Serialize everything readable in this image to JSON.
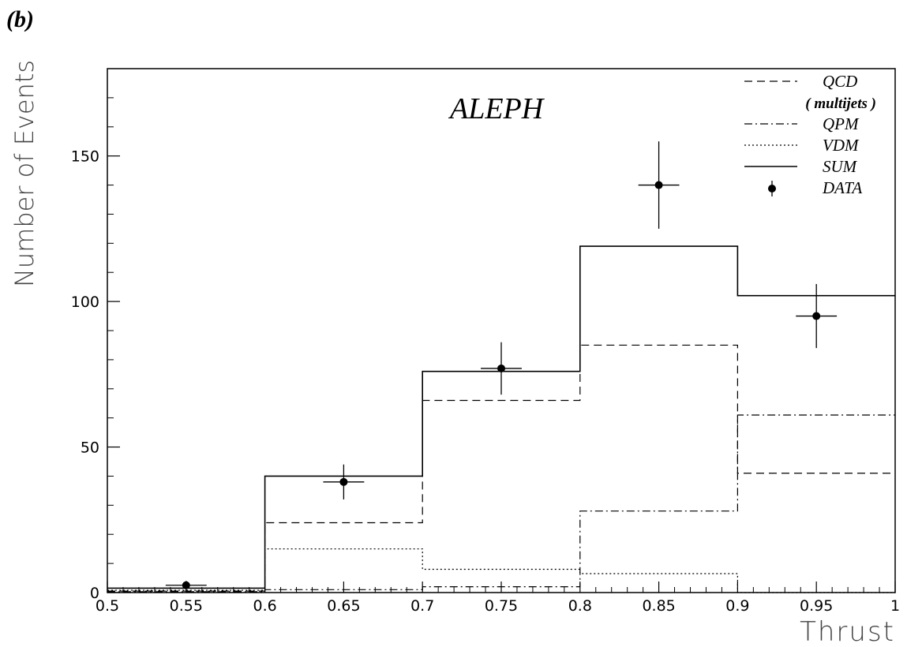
{
  "panel_label": "(b)",
  "chart_data": {
    "type": "histogram",
    "title": "ALEPH",
    "xlabel": "Thrust",
    "ylabel": "Number of Events",
    "xlim": [
      0.5,
      1.0
    ],
    "ylim": [
      0,
      180
    ],
    "x_ticks": [
      "0.5",
      "0.55",
      "0.6",
      "0.65",
      "0.7",
      "0.75",
      "0.8",
      "0.85",
      "0.9",
      "0.95",
      "1"
    ],
    "y_ticks": [
      "0",
      "50",
      "100",
      "150"
    ],
    "bin_edges": [
      0.5,
      0.6,
      0.7,
      0.8,
      0.9,
      1.0
    ],
    "series": [
      {
        "name": "QCD",
        "style": "dashed",
        "values": [
          0.5,
          24,
          66,
          85,
          41
        ]
      },
      {
        "name": "QPM",
        "style": "dashdot",
        "values": [
          0.3,
          1,
          2,
          28,
          61
        ]
      },
      {
        "name": "VDM",
        "style": "dotted",
        "values": [
          0.8,
          15,
          8,
          6.5,
          0
        ]
      },
      {
        "name": "SUM",
        "style": "solid",
        "values": [
          1.5,
          40,
          76,
          119,
          102
        ]
      }
    ],
    "data_points": {
      "name": "DATA",
      "x": [
        0.55,
        0.65,
        0.75,
        0.85,
        0.95
      ],
      "y": [
        2.5,
        38,
        77,
        140,
        95
      ],
      "y_err": [
        1.5,
        6,
        9,
        15,
        11
      ],
      "x_err": [
        0.01,
        0.01,
        0.01,
        0.01,
        0.01
      ]
    },
    "legend": {
      "placement": "top-right",
      "entries": [
        {
          "label": "QCD",
          "style": "dashed"
        },
        {
          "label": "( multijets )",
          "style": "none"
        },
        {
          "label": "QPM",
          "style": "dashdot"
        },
        {
          "label": "VDM",
          "style": "dotted"
        },
        {
          "label": "SUM",
          "style": "solid"
        },
        {
          "label": "DATA",
          "style": "marker"
        }
      ]
    },
    "grid": false
  }
}
